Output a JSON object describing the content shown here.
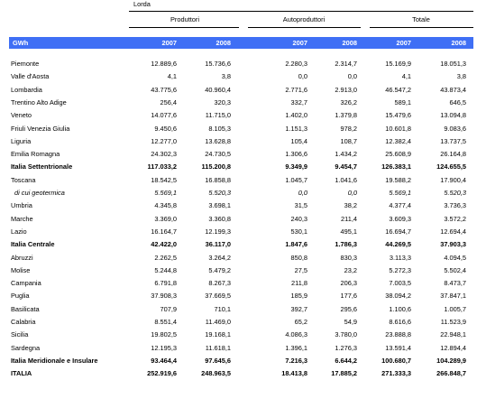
{
  "table": {
    "title": "Lorda",
    "groups": [
      "Produttori",
      "Autoproduttori",
      "Totale"
    ],
    "header": [
      "GWh",
      "2007",
      "2008",
      "2007",
      "2008",
      "2007",
      "2008"
    ],
    "rows": [
      {
        "label": "Piemonte",
        "values": [
          "12.889,6",
          "15.736,6",
          "2.280,3",
          "2.314,7",
          "15.169,9",
          "18.051,3"
        ]
      },
      {
        "label": "Valle d'Aosta",
        "values": [
          "4,1",
          "3,8",
          "0,0",
          "0,0",
          "4,1",
          "3,8"
        ]
      },
      {
        "label": "Lombardia",
        "values": [
          "43.775,6",
          "40.960,4",
          "2.771,6",
          "2.913,0",
          "46.547,2",
          "43.873,4"
        ]
      },
      {
        "label": "Trentino Alto Adige",
        "values": [
          "256,4",
          "320,3",
          "332,7",
          "326,2",
          "589,1",
          "646,5"
        ]
      },
      {
        "label": "Veneto",
        "values": [
          "14.077,6",
          "11.715,0",
          "1.402,0",
          "1.379,8",
          "15.479,6",
          "13.094,8"
        ]
      },
      {
        "label": "Friuli Venezia Giulia",
        "values": [
          "9.450,6",
          "8.105,3",
          "1.151,3",
          "978,2",
          "10.601,8",
          "9.083,6"
        ]
      },
      {
        "label": "Liguria",
        "values": [
          "12.277,0",
          "13.628,8",
          "105,4",
          "108,7",
          "12.382,4",
          "13.737,5"
        ]
      },
      {
        "label": "Emilia Romagna",
        "values": [
          "24.302,3",
          "24.730,5",
          "1.306,6",
          "1.434,2",
          "25.608,9",
          "26.164,8"
        ]
      },
      {
        "label": "Italia Settentrionale",
        "style": "bold",
        "values": [
          "117.033,2",
          "115.200,8",
          "9.349,9",
          "9.454,7",
          "126.383,1",
          "124.655,5"
        ]
      },
      {
        "label": "Toscana",
        "values": [
          "18.542,5",
          "16.858,8",
          "1.045,7",
          "1.041,6",
          "19.588,2",
          "17.900,4"
        ]
      },
      {
        "label": "di cui geotermica",
        "style": "italic",
        "values": [
          "5.569,1",
          "5.520,3",
          "0,0",
          "0,0",
          "5.569,1",
          "5.520,3"
        ]
      },
      {
        "label": "Umbria",
        "values": [
          "4.345,8",
          "3.698,1",
          "31,5",
          "38,2",
          "4.377,4",
          "3.736,3"
        ]
      },
      {
        "label": "Marche",
        "values": [
          "3.369,0",
          "3.360,8",
          "240,3",
          "211,4",
          "3.609,3",
          "3.572,2"
        ]
      },
      {
        "label": "Lazio",
        "values": [
          "16.164,7",
          "12.199,3",
          "530,1",
          "495,1",
          "16.694,7",
          "12.694,4"
        ]
      },
      {
        "label": "Italia Centrale",
        "style": "bold",
        "values": [
          "42.422,0",
          "36.117,0",
          "1.847,6",
          "1.786,3",
          "44.269,5",
          "37.903,3"
        ]
      },
      {
        "label": "Abruzzi",
        "values": [
          "2.262,5",
          "3.264,2",
          "850,8",
          "830,3",
          "3.113,3",
          "4.094,5"
        ]
      },
      {
        "label": "Molise",
        "values": [
          "5.244,8",
          "5.479,2",
          "27,5",
          "23,2",
          "5.272,3",
          "5.502,4"
        ]
      },
      {
        "label": "Campania",
        "values": [
          "6.791,8",
          "8.267,3",
          "211,8",
          "206,3",
          "7.003,5",
          "8.473,7"
        ]
      },
      {
        "label": "Puglia",
        "values": [
          "37.908,3",
          "37.669,5",
          "185,9",
          "177,6",
          "38.094,2",
          "37.847,1"
        ]
      },
      {
        "label": "Basilicata",
        "values": [
          "707,9",
          "710,1",
          "392,7",
          "295,6",
          "1.100,6",
          "1.005,7"
        ]
      },
      {
        "label": "Calabria",
        "values": [
          "8.551,4",
          "11.469,0",
          "65,2",
          "54,9",
          "8.616,6",
          "11.523,9"
        ]
      },
      {
        "label": "Sicilia",
        "values": [
          "19.802,5",
          "19.168,1",
          "4.086,3",
          "3.780,0",
          "23.888,8",
          "22.948,1"
        ]
      },
      {
        "label": "Sardegna",
        "values": [
          "12.195,3",
          "11.618,1",
          "1.396,1",
          "1.276,3",
          "13.591,4",
          "12.894,4"
        ]
      },
      {
        "label": "Italia Meridionale e Insulare",
        "style": "bold",
        "values": [
          "93.464,4",
          "97.645,6",
          "7.216,3",
          "6.644,2",
          "100.680,7",
          "104.289,9"
        ]
      },
      {
        "label": "ITALIA",
        "style": "bold",
        "values": [
          "252.919,6",
          "248.963,5",
          "18.413,8",
          "17.885,2",
          "271.333,3",
          "266.848,7"
        ]
      }
    ]
  }
}
